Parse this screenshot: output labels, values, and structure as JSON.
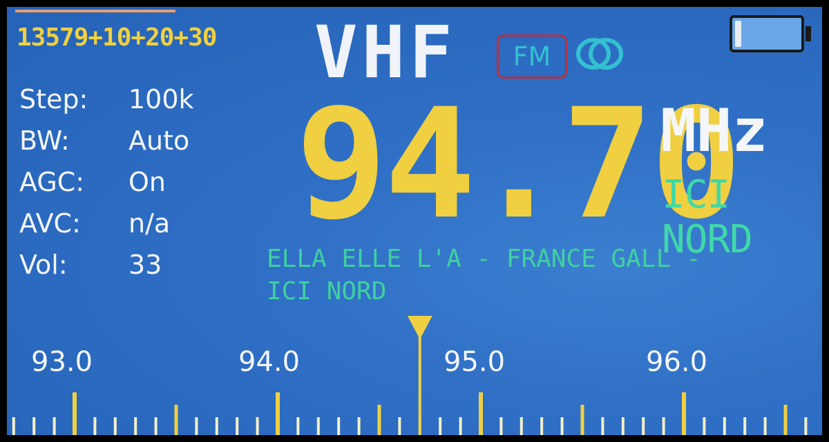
{
  "header": {
    "memory_string": "13579+10+20+30",
    "band": "VHF",
    "modulation": "FM",
    "stereo_icon": "stereo-icon",
    "battery_icon": "battery-icon",
    "battery_level": 0.1
  },
  "settings": [
    {
      "label": "Step:",
      "value": "100k"
    },
    {
      "label": "BW:",
      "value": "Auto"
    },
    {
      "label": "AGC:",
      "value": "On"
    },
    {
      "label": "AVC:",
      "value": "n/a"
    },
    {
      "label": "Vol:",
      "value": "33"
    }
  ],
  "frequency": {
    "value": "94.70",
    "unit": "MHz",
    "station_name": "ICI NORD"
  },
  "rds": {
    "line1": "ELLA ELLE L'A - FRANCE GALL -",
    "line2": "ICI NORD"
  },
  "scale": {
    "labels": [
      "93.0",
      "94.0",
      "95.0",
      "96.0"
    ],
    "tuned_frequency": 94.7,
    "start": 92.7,
    "end": 96.6,
    "colors": {
      "major_tick": "#f0d040",
      "minor_tick": "#f0d040",
      "needle": "#f0d040",
      "label": "#f4f6f8"
    }
  }
}
